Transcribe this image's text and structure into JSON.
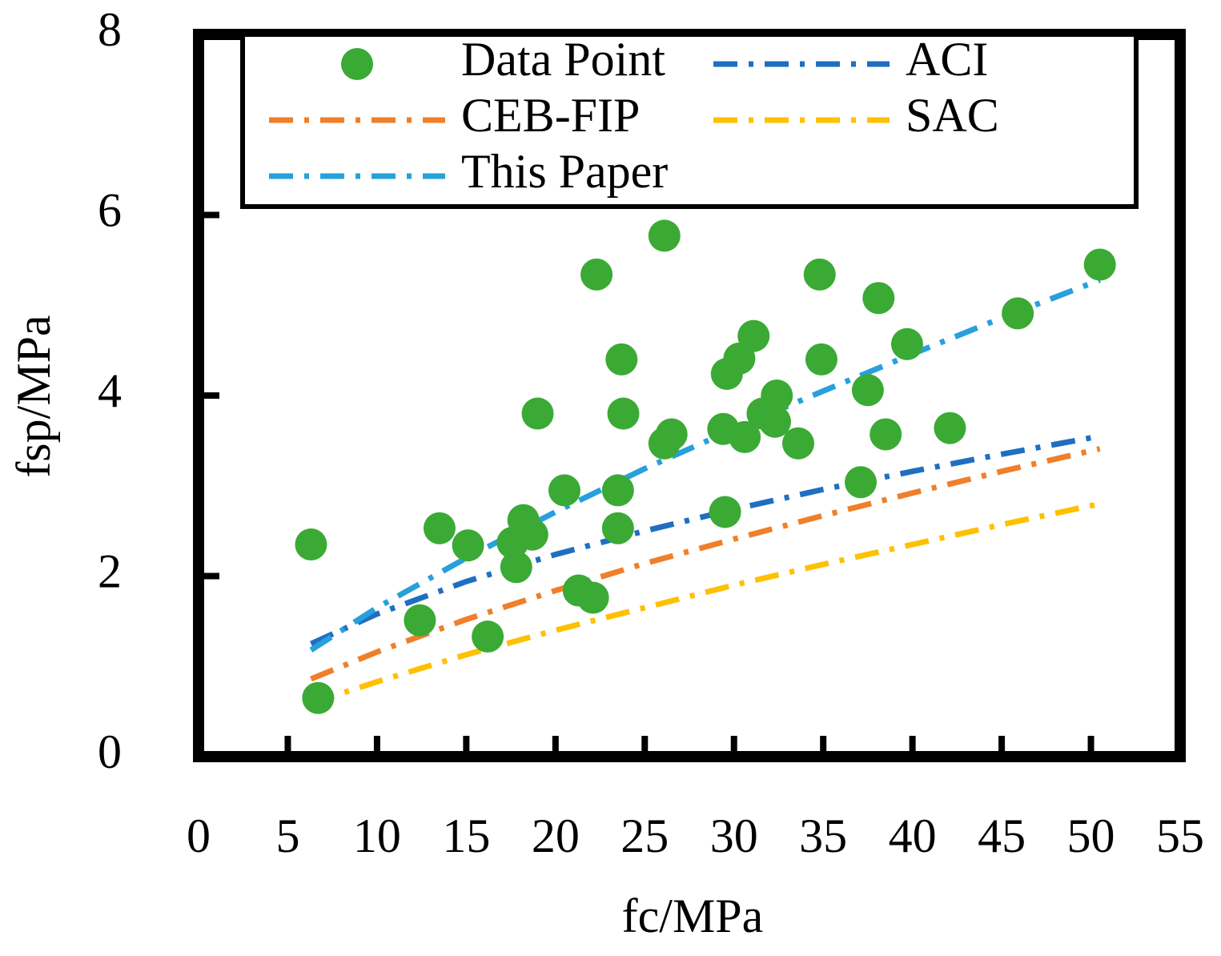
{
  "chart_data": {
    "type": "scatter",
    "x_label": "fc/MPa",
    "y_label": "fsp/MPa",
    "xlim": [
      0,
      55
    ],
    "xticks": [
      0,
      5,
      10,
      15,
      20,
      25,
      30,
      35,
      40,
      45,
      50,
      55
    ],
    "ylim": [
      0,
      8
    ],
    "yticks": [
      0,
      2,
      4,
      6,
      8
    ],
    "legend": "upper center",
    "series": [
      {
        "name": "Data Point",
        "type": "scatter",
        "color": "#3aaa35",
        "x": [
          6.3,
          6.7,
          12.4,
          13.5,
          15.1,
          16.2,
          17.8,
          17.6,
          18.2,
          18.7,
          19.0,
          20.5,
          21.3,
          22.1,
          22.3,
          23.5,
          23.5,
          23.7,
          23.8,
          26.1,
          26.1,
          26.5,
          29.4,
          29.5,
          29.6,
          30.3,
          30.6,
          31.1,
          31.6,
          32.3,
          32.4,
          33.6,
          34.8,
          34.9,
          37.1,
          37.5,
          38.1,
          38.5,
          39.7,
          42.1,
          45.9,
          50.5
        ],
        "values": [
          2.35,
          0.65,
          1.51,
          2.53,
          2.34,
          1.33,
          2.1,
          2.37,
          2.62,
          2.46,
          3.8,
          2.95,
          1.84,
          1.76,
          5.34,
          2.53,
          2.95,
          4.4,
          3.8,
          5.77,
          3.47,
          3.57,
          3.63,
          2.71,
          4.24,
          4.41,
          3.54,
          4.66,
          3.8,
          3.71,
          4.0,
          3.47,
          5.34,
          4.4,
          3.04,
          4.06,
          5.08,
          3.57,
          4.57,
          3.64,
          4.91,
          5.45
        ]
      },
      {
        "name": "ACI",
        "type": "line",
        "color": "#1f6fc1",
        "x": [
          6.3,
          10,
          15,
          20,
          25,
          30,
          35,
          40,
          45,
          50.5
        ],
        "values": [
          1.25,
          1.58,
          1.94,
          2.24,
          2.5,
          2.74,
          2.96,
          3.16,
          3.35,
          3.55
        ]
      },
      {
        "name": "CEB-FIP",
        "type": "line",
        "color": "#f07f2a",
        "x": [
          6.3,
          10,
          15,
          20,
          25,
          30,
          35,
          40,
          45,
          50.5
        ],
        "values": [
          0.86,
          1.16,
          1.52,
          1.84,
          2.14,
          2.41,
          2.67,
          2.92,
          3.16,
          3.41
        ]
      },
      {
        "name": "SAC",
        "type": "line",
        "color": "#ffc000",
        "x": [
          6.3,
          10,
          15,
          20,
          25,
          30,
          35,
          40,
          45,
          50.5
        ],
        "values": [
          0.59,
          0.83,
          1.13,
          1.4,
          1.65,
          1.9,
          2.13,
          2.35,
          2.57,
          2.8
        ]
      },
      {
        "name": "This Paper",
        "type": "line",
        "color": "#27a0dc",
        "x": [
          6.3,
          10,
          15,
          20,
          25,
          30,
          35,
          40,
          45,
          50.5
        ],
        "values": [
          1.18,
          1.65,
          2.2,
          2.71,
          3.19,
          3.63,
          4.05,
          4.46,
          4.86,
          5.28
        ]
      }
    ]
  }
}
